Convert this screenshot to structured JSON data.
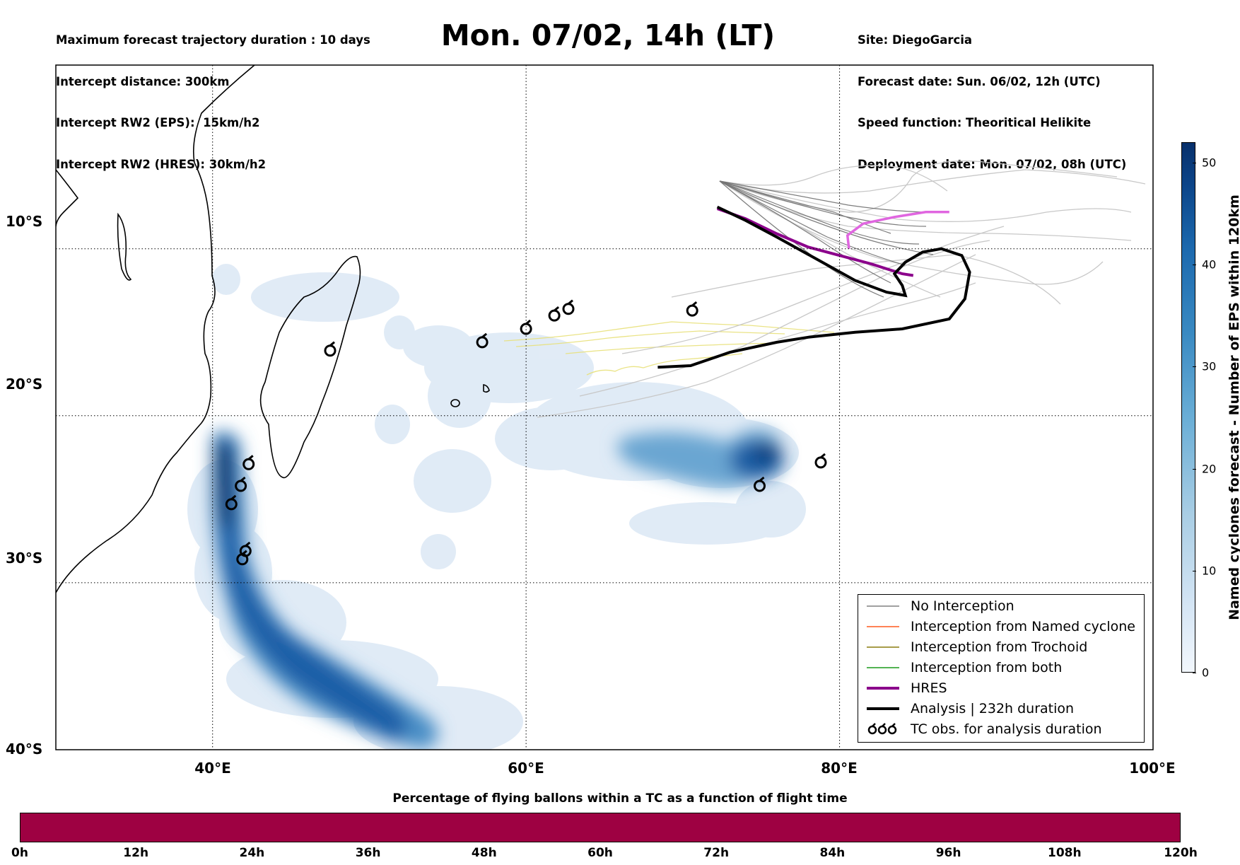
{
  "header_left": [
    "Maximum forecast trajectory duration : 10 days",
    "Intercept distance: 300km",
    "Intercept RW2 (EPS):  15km/h2",
    "Intercept RW2 (HRES): 30km/h2"
  ],
  "title": "Mon. 07/02, 14h (LT)",
  "header_right": [
    "Site: DiegoGarcia",
    "Forecast date: Sun. 06/02, 12h (UTC)",
    "Speed function: Theoritical Helikite",
    "Deployment date: Mon. 07/02, 08h (UTC)"
  ],
  "map": {
    "lon_range": [
      30,
      100
    ],
    "lat_range": [
      -40,
      1
    ],
    "lon_ticks": [
      {
        "value": 40,
        "label": "40°E"
      },
      {
        "value": 60,
        "label": "60°E"
      },
      {
        "value": 80,
        "label": "80°E"
      },
      {
        "value": 100,
        "label": "100°E"
      }
    ],
    "lat_ticks": [
      {
        "value": -10,
        "label": "10°S"
      },
      {
        "value": -20,
        "label": "20°S"
      },
      {
        "value": -30,
        "label": "30°S"
      },
      {
        "value": -40,
        "label": "40°S"
      }
    ],
    "grid": "dotted",
    "hres_track": [
      [
        72.2,
        -7.6
      ],
      [
        74,
        -8.2
      ],
      [
        76,
        -9.1
      ],
      [
        78,
        -9.9
      ],
      [
        80,
        -10.4
      ],
      [
        82,
        -10.9
      ],
      [
        84,
        -11.5
      ],
      [
        84.7,
        -11.6
      ]
    ],
    "pink_track": [
      [
        80.6,
        -10
      ],
      [
        80.5,
        -9.2
      ],
      [
        81.5,
        -8.5
      ],
      [
        83.5,
        -8.1
      ],
      [
        85.5,
        -7.8
      ],
      [
        87,
        -7.8
      ]
    ],
    "analysis_track": [
      [
        68.4,
        -17.1
      ],
      [
        70.5,
        -17
      ],
      [
        73,
        -16.2
      ],
      [
        76,
        -15.6
      ],
      [
        78,
        -15.3
      ],
      [
        81,
        -15
      ],
      [
        84,
        -14.8
      ],
      [
        87,
        -14.2
      ],
      [
        88,
        -13
      ],
      [
        88.3,
        -11.4
      ],
      [
        87.8,
        -10.4
      ],
      [
        86.5,
        -10
      ],
      [
        85.3,
        -10.2
      ],
      [
        84.2,
        -10.8
      ],
      [
        83.5,
        -11.5
      ],
      [
        84,
        -12.2
      ],
      [
        84.2,
        -12.8
      ],
      [
        83,
        -12.6
      ],
      [
        81,
        -11.9
      ],
      [
        78.5,
        -10.6
      ],
      [
        76,
        -9.3
      ],
      [
        74,
        -8.3
      ],
      [
        72.2,
        -7.5
      ]
    ],
    "tc_obs": [
      [
        47.5,
        -16.1
      ],
      [
        57.2,
        -15.6
      ],
      [
        60,
        -14.8
      ],
      [
        61.8,
        -14
      ],
      [
        62.7,
        -13.6
      ],
      [
        70.6,
        -13.7
      ],
      [
        42.3,
        -22.9
      ],
      [
        41.8,
        -24.2
      ],
      [
        41.2,
        -25.3
      ],
      [
        42.1,
        -28.1
      ],
      [
        41.9,
        -28.6
      ],
      [
        74.9,
        -24.2
      ],
      [
        78.8,
        -22.8
      ]
    ]
  },
  "legend": [
    {
      "label": "No Interception",
      "color": "#808080",
      "width": 1.5
    },
    {
      "label": "Interception from Named cyclone",
      "color": "#ff5a1f",
      "width": 1.5
    },
    {
      "label": "Interception from Trochoid",
      "color": "#8a7d0f",
      "width": 1.5
    },
    {
      "label": "Interception from both",
      "color": "#1a9a1a",
      "width": 1.5
    },
    {
      "label": "HRES",
      "color": "#8b008b",
      "width": 4
    },
    {
      "label": "Analysis | 232h duration",
      "color": "#000000",
      "width": 4
    },
    {
      "label": "TC obs. for analysis duration",
      "color": "#000000",
      "width": 0,
      "icon": "tc-symbol-icon"
    }
  ],
  "colorbar": {
    "label": "Named cyclones forecast - Number of EPS within 120km",
    "range": [
      0,
      52
    ],
    "ticks": [
      "0",
      "10",
      "20",
      "30",
      "40",
      "50"
    ]
  },
  "flight_bar": {
    "title": "Percentage of flying ballons within a TC as a function of flight time",
    "color": "#9e0142",
    "ticks": [
      "0h",
      "12h",
      "24h",
      "36h",
      "48h",
      "60h",
      "72h",
      "84h",
      "96h",
      "108h",
      "120h"
    ]
  }
}
